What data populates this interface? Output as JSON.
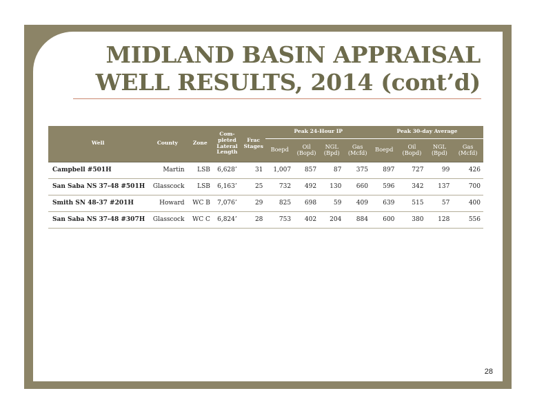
{
  "title": {
    "line1": "MIDLAND BASIN APPRAISAL",
    "line2": "WELL RESULTS, 2014 (cont’d)"
  },
  "table": {
    "headers": {
      "well": "Well",
      "county": "County",
      "zone": "Zone",
      "lateral": "Com-\npleted\nLateral\nLength",
      "frac": "Frac\nStages",
      "group1": "Peak 24-Hour IP",
      "group2": "Peak 30-day Average",
      "sub": [
        "Boepd",
        "Oil\n(Bopd)",
        "NGL\n(Bpd)",
        "Gas\n(Mcfd)",
        "Boepd",
        "Oil\n(Bopd)",
        "NGL\n(Bpd)",
        "Gas\n(Mcfd)"
      ]
    },
    "rows": [
      {
        "well": "Campbell #501H",
        "county": "Martin",
        "zone": "LSB",
        "lateral": "6,628’",
        "frac": "31",
        "ip": [
          "1,007",
          "857",
          "87",
          "375"
        ],
        "avg": [
          "897",
          "727",
          "99",
          "426"
        ]
      },
      {
        "well": "San Saba NS 37-48 #501H",
        "county": "Glasscock",
        "zone": "LSB",
        "lateral": "6,163’",
        "frac": "25",
        "ip": [
          "732",
          "492",
          "130",
          "660"
        ],
        "avg": [
          "596",
          "342",
          "137",
          "700"
        ]
      },
      {
        "well": "Smith SN 48-37 #201H",
        "county": "Howard",
        "zone": "WC B",
        "lateral": "7,076’",
        "frac": "29",
        "ip": [
          "825",
          "698",
          "59",
          "409"
        ],
        "avg": [
          "639",
          "515",
          "57",
          "400"
        ]
      },
      {
        "well": "San Saba NS 37-48 #307H",
        "county": "Glasscock",
        "zone": "WC C",
        "lateral": "6,824’",
        "frac": "28",
        "ip": [
          "753",
          "402",
          "204",
          "884"
        ],
        "avg": [
          "600",
          "380",
          "128",
          "556"
        ]
      }
    ]
  },
  "page_number": "28",
  "colors": {
    "frame": "#8c8467",
    "title": "#6d6b4c",
    "rule": "#c9876e"
  }
}
